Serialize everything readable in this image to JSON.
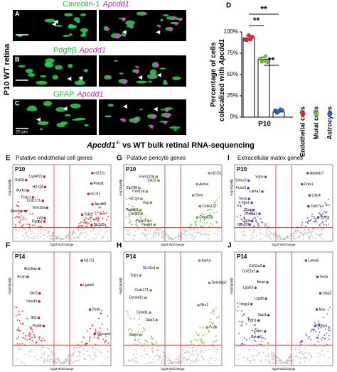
{
  "micrographs": {
    "side_label": "P10 WT retina",
    "panels": [
      {
        "letter": "A",
        "marker": "Caveolin-1",
        "gene": "Apcdd1"
      },
      {
        "letter": "B",
        "marker": "Pdgfrβ",
        "gene": "Apcdd1"
      },
      {
        "letter": "C",
        "marker": "GFAP",
        "gene": "Apcdd1",
        "scale_bar": "20 μm"
      }
    ]
  },
  "chart_data": {
    "type": "bar",
    "panel_label": "D",
    "y_label": "Percentage of cells",
    "y_label_2": "colocalized with",
    "y_label_gene": "Apcdd1",
    "categories": [
      "Endothelial cells",
      "Mural cells",
      "Astrocytes"
    ],
    "colors": [
      "#e8262a",
      "#7cc142",
      "#2f5fc4"
    ],
    "values": [
      93,
      68,
      6
    ],
    "x_label": "P10",
    "ylim": [
      0,
      100
    ],
    "yticks": [
      {
        "value": 0,
        "label": "0%"
      },
      {
        "value": 25,
        "label": "25%"
      },
      {
        "value": 50,
        "label": "50%"
      },
      {
        "value": 75,
        "label": "75%"
      },
      {
        "value": 100,
        "label": "100%"
      }
    ],
    "significance": [
      "**",
      "**",
      "**"
    ]
  },
  "section_title": {
    "gene": "Apcdd1",
    "genotype": "-/-",
    "rest": " vs WT  bulk retinal RNA-sequencing"
  },
  "volcano": {
    "x_label": "log2FoldChange",
    "y_label": "-log10(padj)",
    "columns": [
      {
        "title": "Putative endothelial cell genes",
        "color": "#e02020"
      },
      {
        "title": "Putative pericyte genes",
        "color": "#6cc030"
      },
      {
        "title": "Extracellular matrix genes",
        "color": "#6a3fc0"
      }
    ],
    "rows": [
      [
        {
          "letter": "E",
          "age": "P10",
          "genes": [
            "H2-D1",
            "Cyp4f13",
            "Syt15",
            "Polr2k",
            "H2-Q4",
            "Aurka",
            "H2-K1",
            "Fndc1",
            "Ccdc171",
            "Apcdd1",
            "Trim12a",
            "Alox5ap",
            "Tekt1",
            "Vit",
            "Pgap2",
            "Sh2d2a"
          ]
        },
        {
          "letter": "G",
          "age": "P10",
          "genes": [
            "H2-D1",
            "Fam210b",
            "Syt15",
            "Aurka",
            "Zfp788",
            "Trim12a",
            "Gem",
            "H2-Q4",
            "Vcp",
            "Ccdc171",
            "Apcdd1",
            "Lama2",
            "Cfap126",
            "Pgap2",
            "Heatr6"
          ]
        },
        {
          "letter": "I",
          "age": "P10",
          "genes": [
            "Adamts7",
            "Sspn",
            "Smoc2",
            "Fras1",
            "Frem2",
            "Lama2",
            "Ltbp4",
            "Tecta",
            "Fbn1",
            "Col17a1",
            "Ctss",
            "Col28a1",
            "Postn",
            "Chrd",
            "Olfml3"
          ]
        }
      ],
      [
        {
          "letter": "F",
          "age": "P14",
          "genes": [
            "H2-D1",
            "Alox5ap",
            "Bcan",
            "Lgals9",
            "Clic3",
            "Tmod3",
            "Penk",
            "Ifit3",
            "Padi6",
            "Glycam1"
          ]
        },
        {
          "letter": "H",
          "age": "P14",
          "genes": [
            "Aurka",
            "Slc16a1",
            "Trib1",
            "Selenbp2",
            "Ccdc171",
            "Dennd1c",
            "Mrc1",
            "Cybrd1",
            "Spp1",
            "Fosb",
            "Gatm"
          ]
        },
        {
          "letter": "J",
          "age": "P14",
          "genes": [
            "Lama5",
            "Col11a2",
            "Col22a1",
            "Tecta",
            "Bcan",
            "Lgals3",
            "Ltbp2",
            "Lypd6",
            "Tinag1",
            "Nov",
            "Spp1",
            "Cdh1",
            "Mfap4",
            "Fbln1",
            "Dpt"
          ]
        }
      ]
    ]
  }
}
